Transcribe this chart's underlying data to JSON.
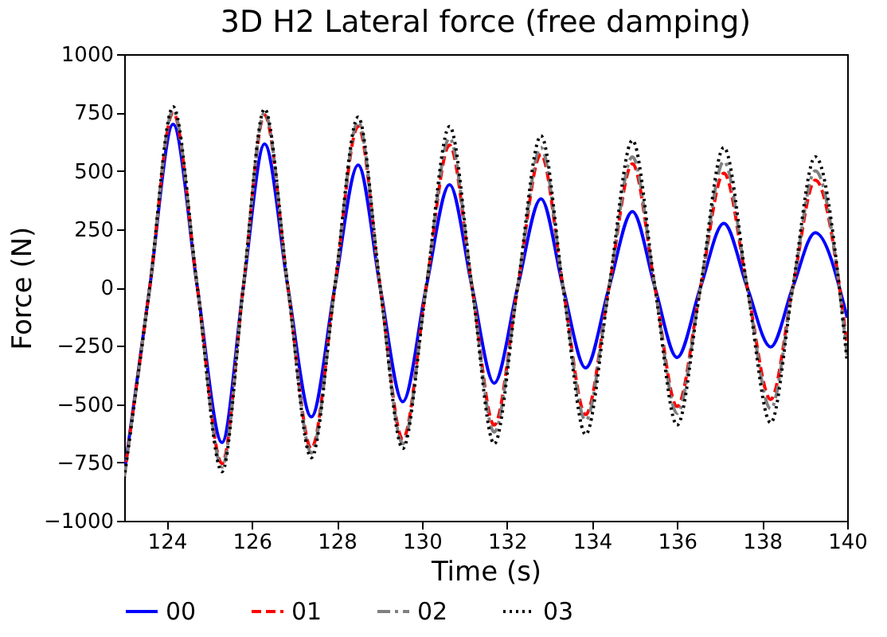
{
  "chart_data": {
    "type": "line",
    "title": "3D H2 Lateral force (free damping)",
    "xlabel": "Time (s)",
    "ylabel": "Force (N)",
    "x": [
      123,
      123.6,
      124.15,
      124.72,
      125.3,
      125.8,
      126.3,
      126.85,
      127.4,
      127.95,
      128.5,
      129.02,
      129.55,
      130.1,
      130.65,
      131.18,
      131.7,
      132.25,
      132.8,
      133.32,
      133.85,
      134.4,
      134.95,
      135.48,
      136.0,
      136.55,
      137.1,
      137.65,
      138.2,
      138.72,
      139.25,
      140
    ],
    "series": [
      {
        "name": "00",
        "color": "#0000ff",
        "line_style": "solid",
        "values": [
          -800,
          0,
          700,
          0,
          -665,
          0,
          615,
          0,
          -555,
          0,
          525,
          0,
          -490,
          0,
          440,
          0,
          -410,
          0,
          380,
          0,
          -345,
          0,
          325,
          0,
          -300,
          0,
          275,
          0,
          -255,
          0,
          235,
          -130
        ]
      },
      {
        "name": "01",
        "color": "#ff0000",
        "line_style": "dashed",
        "values": [
          -810,
          0,
          750,
          0,
          -755,
          0,
          740,
          0,
          -690,
          0,
          690,
          0,
          -650,
          0,
          610,
          0,
          -590,
          0,
          570,
          0,
          -545,
          0,
          530,
          0,
          -510,
          0,
          490,
          0,
          -480,
          0,
          460,
          -250
        ]
      },
      {
        "name": "02",
        "color": "#808080",
        "line_style": "dashdot",
        "values": [
          -815,
          0,
          760,
          0,
          -770,
          0,
          750,
          0,
          -710,
          0,
          710,
          0,
          -670,
          0,
          640,
          0,
          -620,
          0,
          600,
          0,
          -570,
          0,
          560,
          0,
          -540,
          0,
          540,
          0,
          -520,
          0,
          500,
          -290
        ]
      },
      {
        "name": "03",
        "color": "#000000",
        "line_style": "dotted",
        "values": [
          -820,
          0,
          775,
          0,
          -790,
          0,
          765,
          0,
          -730,
          0,
          730,
          0,
          -690,
          0,
          690,
          0,
          -670,
          0,
          650,
          0,
          -630,
          0,
          630,
          0,
          -590,
          0,
          600,
          0,
          -580,
          0,
          560,
          -320
        ]
      }
    ],
    "xlim": [
      123,
      140
    ],
    "xticks": [
      124,
      126,
      128,
      130,
      132,
      134,
      136,
      138,
      140
    ],
    "ylim": [
      -1000,
      1000
    ],
    "yticks": [
      -1000,
      -750,
      -500,
      -250,
      0,
      250,
      500,
      750,
      1000
    ],
    "grid": false,
    "legend": "bottom",
    "marker": "none"
  }
}
